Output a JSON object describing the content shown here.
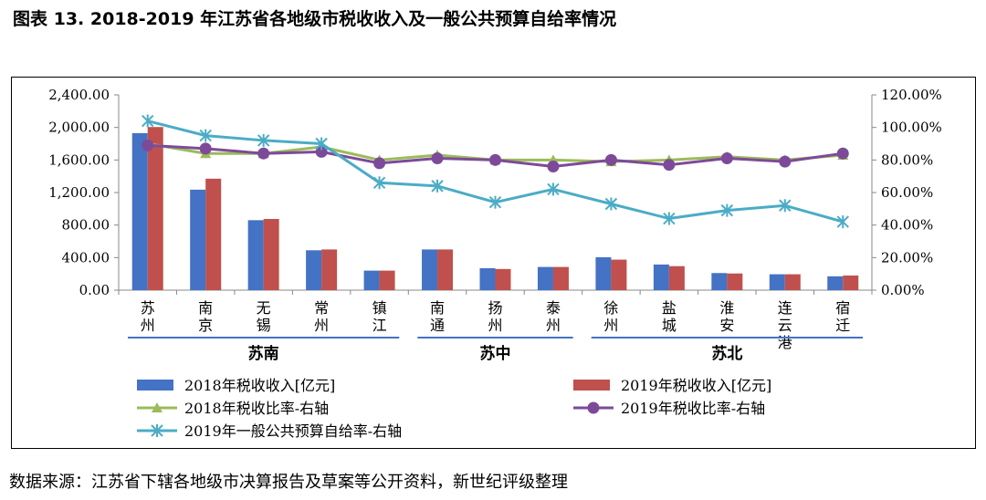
{
  "title": "图表 13. 2018-2019 年江苏省各地级市税收收入及一般公共预算自给率情况",
  "source": "数据来源：江苏省下辖各地级市决算报告及草案等公开资料，新世纪评级整理",
  "chart_data": {
    "type": "bar",
    "categories": [
      "苏\n州",
      "南\n京",
      "无\n锡",
      "常\n州",
      "镇\n江",
      "南\n通",
      "扬\n州",
      "泰\n州",
      "徐\n州",
      "盐\n城",
      "淮\n安",
      "连\n云\n港",
      "宿\n迁"
    ],
    "groups": [
      {
        "name": "苏南",
        "start": 0,
        "end": 4
      },
      {
        "name": "苏中",
        "start": 5,
        "end": 7
      },
      {
        "name": "苏北",
        "start": 8,
        "end": 12
      }
    ],
    "y_left": {
      "min": 0,
      "max": 2400,
      "step": 400,
      "ticks": [
        "0.00",
        "400.00",
        "800.00",
        "1,200.00",
        "1,600.00",
        "2,000.00",
        "2,400.00"
      ]
    },
    "y_right": {
      "min": 0,
      "max": 120,
      "step": 20,
      "ticks": [
        "0.00%",
        "20.00%",
        "40.00%",
        "60.00%",
        "80.00%",
        "100.00%",
        "120.00%"
      ]
    },
    "series": [
      {
        "name": "2018年税收收入[亿元]",
        "kind": "bar",
        "axis": "left",
        "color": "#4472C4",
        "values": [
          1930,
          1235,
          860,
          490,
          240,
          500,
          270,
          285,
          405,
          315,
          210,
          195,
          170
        ]
      },
      {
        "name": "2019年税收收入[亿元]",
        "kind": "bar",
        "axis": "left",
        "color": "#C0504D",
        "values": [
          2005,
          1370,
          875,
          500,
          240,
          500,
          260,
          285,
          375,
          295,
          205,
          195,
          180
        ]
      },
      {
        "name": "2018年税收比率-右轴",
        "kind": "line",
        "axis": "right",
        "color": "#9BBB59",
        "marker": "triangle",
        "values": [
          90,
          84,
          84,
          88,
          80,
          83,
          80,
          80,
          79,
          80,
          82,
          80,
          83
        ]
      },
      {
        "name": "2019年税收比率-右轴",
        "kind": "line",
        "axis": "right",
        "color": "#7D4A9A",
        "marker": "circle",
        "values": [
          89,
          87,
          84,
          85,
          78,
          81,
          80,
          76,
          80,
          77,
          81,
          79,
          84
        ]
      },
      {
        "name": "2019年一般公共预算自给率-右轴",
        "kind": "line",
        "axis": "right",
        "color": "#4BACC6",
        "marker": "star",
        "values": [
          104,
          95,
          92,
          90,
          66,
          64,
          54,
          62,
          53,
          44,
          49,
          52,
          42
        ]
      }
    ],
    "legend_position": "bottom"
  }
}
